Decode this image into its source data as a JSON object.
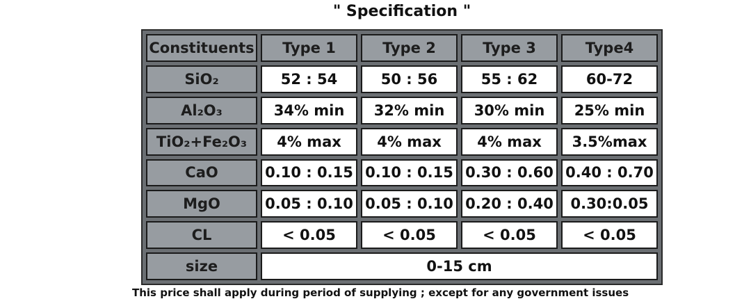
{
  "title": "\" Specification \"",
  "table": {
    "header": [
      "Constituents",
      "Type 1",
      "Type 2",
      "Type 3",
      "Type4"
    ],
    "rows": [
      [
        "SiO₂",
        "52 : 54",
        "50 : 56",
        "55 : 62",
        "60-72"
      ],
      [
        "Al₂O₃",
        "34% min",
        "32% min",
        "30% min",
        "25% min"
      ],
      [
        "TiO₂+Fe₂O₃",
        "4% max",
        "4% max",
        "4% max",
        "3.5%max"
      ],
      [
        "CaO",
        "0.10 : 0.15",
        "0.10 : 0.15",
        "0.30 : 0.60",
        "0.40 : 0.70"
      ],
      [
        "MgO",
        "0.05 : 0.10",
        "0.05 : 0.10",
        "0.20 : 0.40",
        "0.30:0.05"
      ],
      [
        "CL",
        "< 0.05",
        "< 0.05",
        "< 0.05",
        "< 0.05"
      ],
      [
        "size",
        "0-15 cm"
      ]
    ]
  },
  "footer": "This price shall apply during period of supplying ; except for any government issues"
}
